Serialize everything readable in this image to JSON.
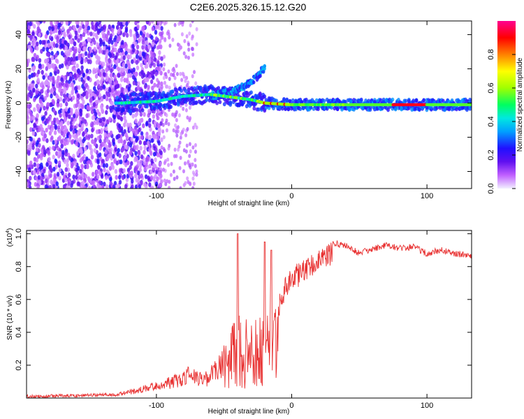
{
  "title": "C2E6.2025.326.15.12.G20",
  "chart_data": [
    {
      "type": "heatmap",
      "name": "spectrogram",
      "xlabel": "Height of straight line (km)",
      "ylabel": "Frequency (Hz)",
      "xlim": [
        -196,
        133
      ],
      "ylim": [
        -50,
        48
      ],
      "x_ticks": [
        -100,
        0,
        100
      ],
      "x_tick_labels": [
        "-100",
        "0",
        "100"
      ],
      "y_ticks": [
        -40,
        -20,
        0,
        20,
        40
      ],
      "y_tick_labels": [
        "-40",
        "-20",
        "0",
        "20",
        "40"
      ],
      "ridge": {
        "description_points_x": [
          -125,
          -100,
          -80,
          -60,
          -40,
          -30,
          -20,
          0,
          40,
          100,
          133
        ],
        "description_points_y": [
          0,
          1,
          4,
          5,
          3,
          2,
          0,
          -1,
          -1,
          -1,
          -1
        ]
      },
      "upper_branch": {
        "x": [
          -60,
          -50,
          -40,
          -30,
          -25,
          -20
        ],
        "y": [
          4,
          6,
          8,
          12,
          16,
          21
        ]
      },
      "colorbar": {
        "label": "Normalized spectral amplitude",
        "range": [
          0,
          1
        ],
        "ticks": [
          0.0,
          0.2,
          0.4,
          0.6,
          0.8
        ],
        "tick_labels": [
          "0.0",
          "0.2",
          "0.4",
          "0.6",
          "0.8"
        ]
      }
    },
    {
      "type": "line",
      "name": "snr",
      "xlabel": "Height of straight line (km)",
      "ylabel": "SNR (10 * v/v)",
      "scale_label": "(x10",
      "scale_exp": "4",
      "xlim": [
        -196,
        133
      ],
      "ylim": [
        0,
        1.02
      ],
      "x_ticks": [
        -100,
        0,
        100
      ],
      "x_tick_labels": [
        "-100",
        "0",
        "100"
      ],
      "y_ticks": [
        0.2,
        0.4,
        0.6,
        0.8,
        1.0
      ],
      "y_tick_labels": [
        "0.2",
        "0.4",
        "0.6",
        "0.8",
        "1.0"
      ],
      "color": "#e83030",
      "envelope": {
        "x": [
          -196,
          -130,
          -120,
          -100,
          -85,
          -75,
          -65,
          -55,
          -45,
          -40,
          -35,
          -30,
          -25,
          -20,
          -15,
          -10,
          -5,
          0,
          10,
          20,
          30,
          40,
          50,
          60,
          70,
          80,
          90,
          100,
          110,
          120,
          133
        ],
        "y": [
          0.02,
          0.03,
          0.05,
          0.1,
          0.15,
          0.2,
          0.15,
          0.25,
          0.4,
          0.6,
          0.45,
          0.6,
          0.5,
          0.5,
          0.65,
          0.6,
          0.75,
          0.8,
          0.85,
          0.9,
          0.96,
          0.95,
          0.9,
          0.93,
          0.95,
          0.93,
          0.94,
          0.9,
          0.92,
          0.9,
          0.89
        ]
      },
      "spikes": {
        "x": [
          -40,
          -20,
          -15
        ],
        "y": [
          1.0,
          0.95,
          0.9
        ]
      }
    }
  ]
}
